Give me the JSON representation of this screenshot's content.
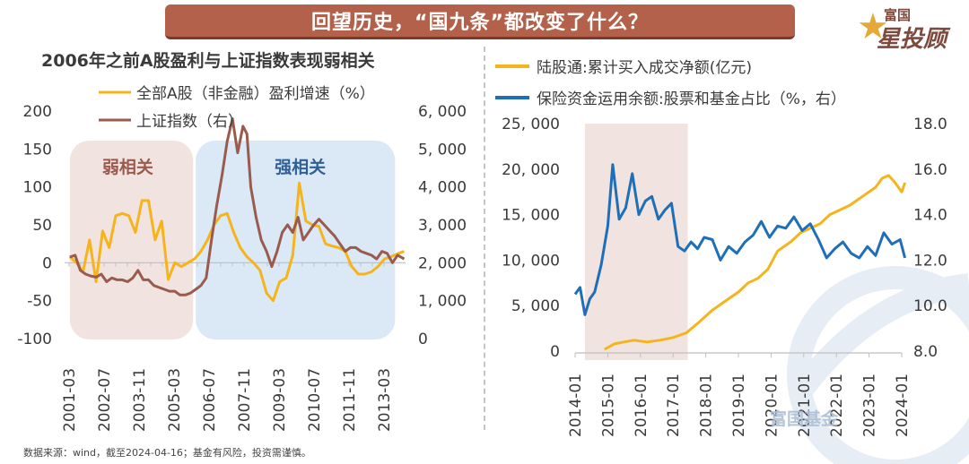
{
  "banner": {
    "title": "回望历史，“国九条”都改变了什么？"
  },
  "brand": {
    "small": "富国",
    "big": "星投顾",
    "watermark": "富国基金"
  },
  "footer": {
    "source": "数据来源：wind，截至2024-04-16；基金有风险，投资需谨慎。"
  },
  "colors": {
    "orange": "#f5b41c",
    "brown": "#9b5a4e",
    "blue": "#1f6fb8",
    "pink_band": "#f1e4e0",
    "blue_band": "#dbe9f6"
  },
  "chart_data": [
    {
      "type": "line",
      "title": "2006年之前A股盈利与上证指数表现弱相关",
      "legend_position": "top-left",
      "x_ticks": [
        "2001-03",
        "2002-07",
        "2003-11",
        "2005-03",
        "2006-07",
        "2007-11",
        "2009-03",
        "2010-07",
        "2011-11",
        "2013-03"
      ],
      "x_range": [
        2001.0,
        2014.0
      ],
      "y_left": {
        "ticks": [
          "200",
          "150",
          "100",
          "50",
          "0",
          "-50",
          "-100"
        ],
        "range": [
          -100,
          200
        ]
      },
      "y_right": {
        "ticks": [
          "6, 000",
          "5, 000",
          "4, 000",
          "3, 000",
          "2, 000",
          "1, 000",
          "0"
        ],
        "range": [
          0,
          6000
        ]
      },
      "regions": [
        {
          "label": "弱相关",
          "x_start": 2001.2,
          "x_end": 2005.9
        },
        {
          "label": "强相关",
          "x_start": 2006.0,
          "x_end": 2013.6
        }
      ],
      "series": [
        {
          "name": "全部A股（非金融）盈利增速（%）",
          "axis": "left",
          "x": [
            2001.2,
            2001.45,
            2001.7,
            2001.95,
            2002.2,
            2002.45,
            2002.7,
            2002.95,
            2003.2,
            2003.45,
            2003.7,
            2003.95,
            2004.2,
            2004.45,
            2004.7,
            2004.95,
            2005.2,
            2005.45,
            2005.7,
            2005.95,
            2006.2,
            2006.45,
            2006.7,
            2006.95,
            2007.2,
            2007.45,
            2007.7,
            2007.95,
            2008.2,
            2008.45,
            2008.7,
            2008.95,
            2009.2,
            2009.45,
            2009.7,
            2009.95,
            2010.2,
            2010.45,
            2010.7,
            2010.95,
            2011.2,
            2011.45,
            2011.7,
            2011.95,
            2012.2,
            2012.45,
            2012.7,
            2012.95,
            2013.2,
            2013.45,
            2013.7,
            2013.95
          ],
          "y": [
            8,
            0,
            -12,
            30,
            -25,
            42,
            20,
            62,
            65,
            62,
            40,
            82,
            82,
            30,
            55,
            -22,
            0,
            -5,
            0,
            5,
            15,
            30,
            50,
            62,
            65,
            40,
            20,
            8,
            0,
            -10,
            -40,
            -50,
            -25,
            -20,
            10,
            105,
            55,
            50,
            48,
            25,
            22,
            20,
            15,
            -5,
            -15,
            -15,
            -12,
            -5,
            5,
            8,
            12,
            15
          ]
        },
        {
          "name": "上证指数（右）",
          "axis": "right",
          "x": [
            2001.2,
            2001.4,
            2001.6,
            2001.8,
            2002.0,
            2002.2,
            2002.4,
            2002.6,
            2002.8,
            2003.0,
            2003.2,
            2003.4,
            2003.6,
            2003.8,
            2004.0,
            2004.2,
            2004.4,
            2004.6,
            2004.8,
            2005.0,
            2005.2,
            2005.4,
            2005.6,
            2005.8,
            2006.0,
            2006.2,
            2006.4,
            2006.6,
            2006.8,
            2007.0,
            2007.2,
            2007.4,
            2007.6,
            2007.8,
            2007.95,
            2008.1,
            2008.3,
            2008.5,
            2008.7,
            2008.9,
            2009.1,
            2009.3,
            2009.5,
            2009.7,
            2009.9,
            2010.1,
            2010.3,
            2010.5,
            2010.7,
            2010.9,
            2011.1,
            2011.3,
            2011.5,
            2011.7,
            2011.9,
            2012.1,
            2012.3,
            2012.5,
            2012.7,
            2012.9,
            2013.1,
            2013.3,
            2013.5,
            2013.7,
            2013.95
          ],
          "y": [
            2150,
            2200,
            1800,
            1700,
            1650,
            1620,
            1700,
            1500,
            1600,
            1550,
            1550,
            1500,
            1600,
            1800,
            1550,
            1550,
            1400,
            1350,
            1300,
            1250,
            1250,
            1150,
            1150,
            1200,
            1300,
            1400,
            1600,
            2600,
            3500,
            4300,
            5200,
            5800,
            4900,
            5600,
            5400,
            4000,
            3200,
            2600,
            2300,
            1900,
            2300,
            2800,
            3000,
            2800,
            3200,
            2600,
            2800,
            3000,
            3150,
            3000,
            2850,
            2700,
            2500,
            2300,
            2400,
            2400,
            2300,
            2250,
            2200,
            2100,
            2300,
            2250,
            2000,
            2200,
            2100
          ]
        }
      ]
    },
    {
      "type": "line",
      "legend_position": "top-left",
      "x_ticks": [
        "2014-01",
        "2015-01",
        "2016-01",
        "2017-01",
        "2018-01",
        "2019-01",
        "2020-01",
        "2021-01",
        "2022-01",
        "2023-01",
        "2024-01"
      ],
      "x_range": [
        2014.0,
        2024.0
      ],
      "y_left": {
        "ticks": [
          "25, 000",
          "20, 000",
          "15, 000",
          "10, 000",
          "5, 000",
          "0"
        ],
        "range": [
          0,
          25000
        ]
      },
      "y_right": {
        "ticks": [
          "18.0",
          "16.0",
          "14.0",
          "12.0",
          "10.0",
          "8.0"
        ],
        "range": [
          8,
          18
        ]
      },
      "regions": [
        {
          "label": "",
          "x_start": 2014.3,
          "x_end": 2017.45
        }
      ],
      "series": [
        {
          "name": "陆股通:累计买入成交净额(亿元)",
          "axis": "left",
          "x": [
            2014.9,
            2015.2,
            2015.5,
            2015.8,
            2016.2,
            2016.6,
            2017.0,
            2017.4,
            2017.8,
            2018.2,
            2018.6,
            2019.0,
            2019.3,
            2019.6,
            2019.9,
            2020.2,
            2020.6,
            2020.9,
            2021.2,
            2021.5,
            2021.8,
            2022.1,
            2022.4,
            2022.6,
            2022.8,
            2023.0,
            2023.2,
            2023.4,
            2023.6,
            2023.8,
            2024.0,
            2024.1
          ],
          "y": [
            200,
            800,
            1000,
            1200,
            1000,
            1200,
            1500,
            2000,
            3200,
            4500,
            5500,
            6500,
            7500,
            8000,
            9000,
            11000,
            12000,
            13000,
            13500,
            14000,
            15000,
            15500,
            16000,
            16500,
            17000,
            17500,
            18000,
            19000,
            19300,
            18500,
            17500,
            18500
          ]
        },
        {
          "name": "保险资金运用余额:股票和基金占比（%，右）",
          "axis": "right",
          "x": [
            2014.0,
            2014.15,
            2014.3,
            2014.45,
            2014.6,
            2014.8,
            2015.0,
            2015.15,
            2015.35,
            2015.55,
            2015.75,
            2015.95,
            2016.15,
            2016.35,
            2016.55,
            2016.75,
            2016.95,
            2017.15,
            2017.35,
            2017.55,
            2017.75,
            2017.95,
            2018.2,
            2018.45,
            2018.7,
            2018.95,
            2019.2,
            2019.45,
            2019.7,
            2019.95,
            2020.2,
            2020.45,
            2020.7,
            2020.95,
            2021.2,
            2021.45,
            2021.7,
            2021.95,
            2022.2,
            2022.45,
            2022.7,
            2022.95,
            2023.2,
            2023.45,
            2023.7,
            2023.95,
            2024.1
          ],
          "y": [
            10.5,
            10.8,
            9.6,
            10.3,
            10.6,
            11.8,
            13.5,
            16.2,
            13.8,
            14.3,
            15.8,
            14.0,
            14.6,
            14.8,
            13.8,
            14.2,
            14.5,
            12.6,
            12.4,
            12.8,
            12.5,
            13.0,
            12.9,
            12.0,
            12.6,
            12.3,
            12.8,
            13.1,
            13.7,
            13.0,
            13.5,
            13.4,
            13.9,
            13.3,
            13.6,
            12.9,
            12.1,
            12.5,
            12.8,
            12.3,
            12.1,
            12.6,
            12.2,
            13.2,
            12.7,
            12.9,
            12.1
          ]
        }
      ]
    }
  ]
}
